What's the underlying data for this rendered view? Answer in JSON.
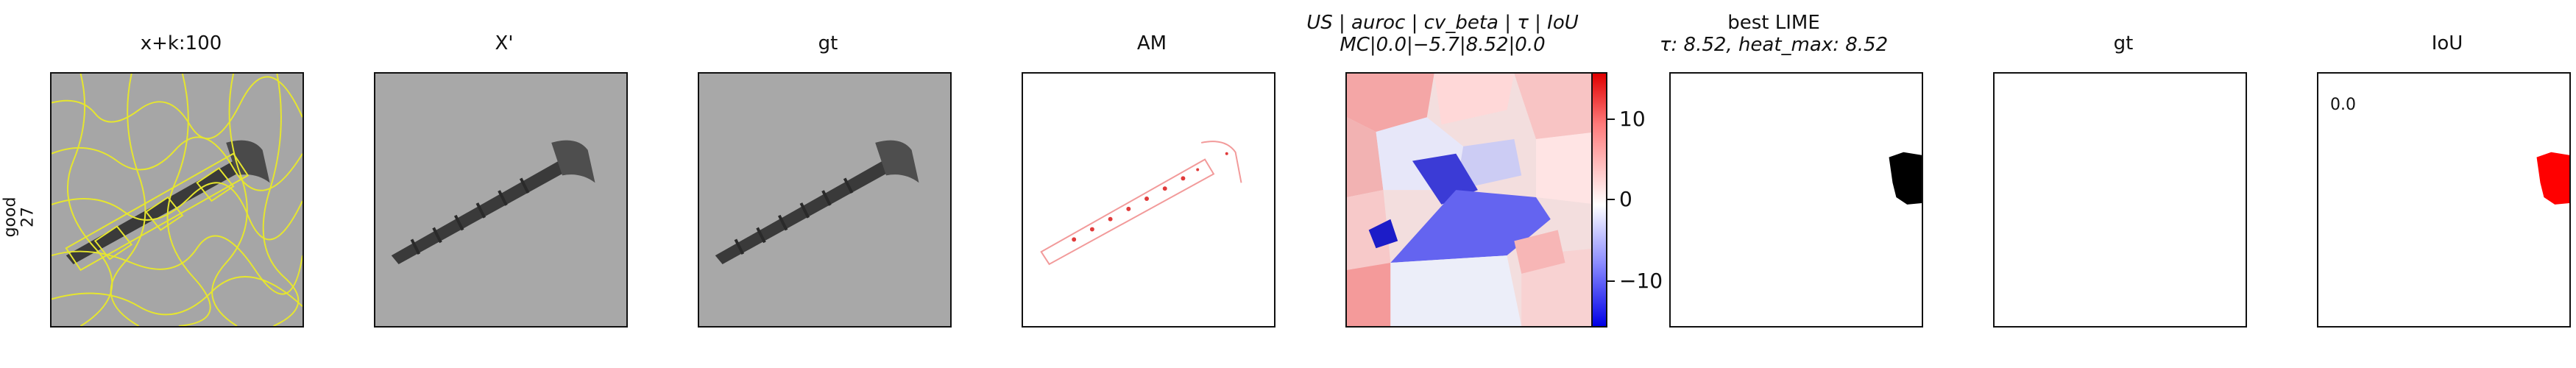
{
  "row_label": {
    "line1": "good",
    "line2": "27"
  },
  "panels": [
    {
      "id": "p1",
      "title": "x+k:100"
    },
    {
      "id": "p2",
      "title": "X'"
    },
    {
      "id": "p3",
      "title": "gt"
    },
    {
      "id": "p4",
      "title": "AM"
    },
    {
      "id": "p5",
      "title_line1": "US | auroc | cv_beta | τ | IoU",
      "title_line2": "MC|0.0|−5.7|8.52|0.0"
    },
    {
      "id": "p6",
      "title_line1": "best LIME",
      "title_line2": "τ: 8.52, heat_max: 8.52"
    },
    {
      "id": "p7",
      "title": "gt"
    },
    {
      "id": "p8",
      "title": "IoU",
      "value": "0.0"
    }
  ],
  "colorbar": {
    "ticks": [
      "10",
      "0",
      "−10"
    ],
    "top_color": "#e00000",
    "mid_color": "#ffffff",
    "bottom_color": "#0000e6"
  },
  "colors": {
    "superpixel_boundaries": "#e6e62e",
    "lime_mask": "#000000",
    "iou_mask": "#ff0000",
    "background_gray": "#a8a8a8"
  }
}
